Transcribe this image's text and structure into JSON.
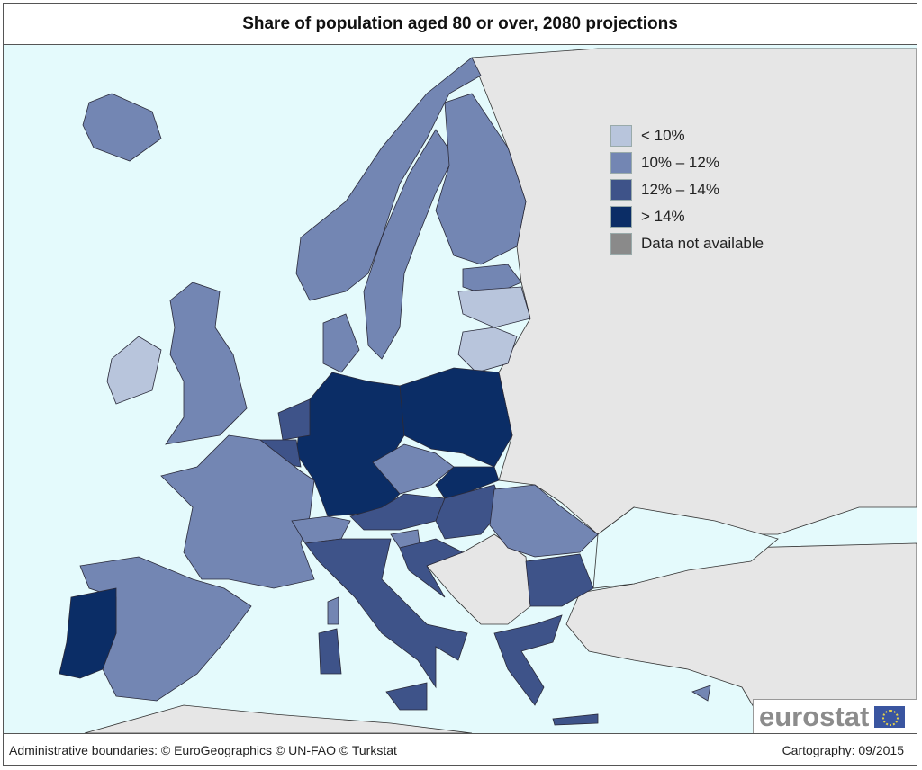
{
  "title": "Share of population aged 80 or over, 2080 projections",
  "legend": [
    {
      "label": "< 10%",
      "color": "#b8c5dc"
    },
    {
      "label": "10% – 12%",
      "color": "#7386b3"
    },
    {
      "label": "12% – 14%",
      "color": "#3e5389"
    },
    {
      "label": "> 14%",
      "color": "#0b2d66"
    },
    {
      "label": "Data not available",
      "color": "#8a8a8a"
    }
  ],
  "colors": {
    "sea": "#e4fafc",
    "non_eu_land": "#e6e6e6"
  },
  "logo": {
    "text": "eurostat"
  },
  "footer": {
    "sources": "Administrative boundaries: © EuroGeographics © UN-FAO © Turkstat",
    "cartography": "Cartography: 09/2015"
  }
}
